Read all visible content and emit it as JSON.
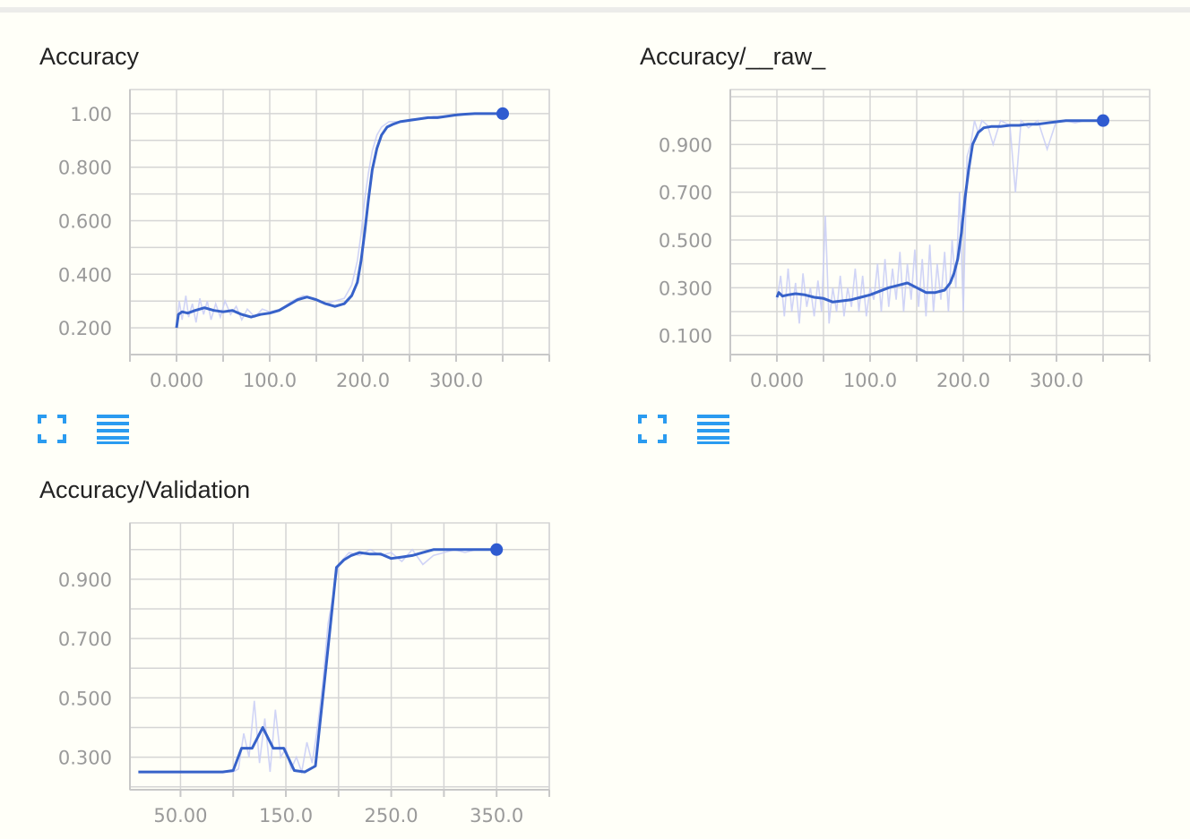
{
  "colors": {
    "background": "#fffff8",
    "series_smoothed": "#3762c9",
    "series_raw": "#c8cdf6",
    "icon_blue": "#2a9bf0",
    "grid": "#d5d5d5",
    "tick_text": "#9a9a9a"
  },
  "icons": {
    "expand": "expand-icon",
    "data_table": "data-table-icon"
  },
  "chart_data": [
    {
      "type": "line",
      "title": "Accuracy",
      "xlabel": "",
      "ylabel": "",
      "xlim": [
        -50,
        400
      ],
      "ylim": [
        0.1,
        1.09
      ],
      "x_ticks": [
        0,
        100,
        200,
        300
      ],
      "x_tick_labels": [
        "0.000",
        "100.0",
        "200.0",
        "300.0"
      ],
      "y_ticks": [
        1.0,
        0.8,
        0.6,
        0.4,
        0.2
      ],
      "y_tick_labels": [
        "1.00",
        "0.800",
        "0.600",
        "0.400",
        "0.200"
      ],
      "grid": true,
      "series": [
        {
          "style": "raw",
          "x": [
            0,
            3,
            6,
            10,
            13,
            17,
            21,
            25,
            29,
            33,
            37,
            42,
            47,
            52,
            58,
            64,
            70,
            76,
            84,
            92,
            100,
            112,
            124,
            136,
            148,
            160,
            170,
            180,
            188,
            194,
            198,
            202,
            206,
            210,
            215,
            220,
            228,
            240,
            252,
            264,
            276,
            290,
            305,
            320,
            335,
            350
          ],
          "y": [
            0.2,
            0.3,
            0.23,
            0.32,
            0.24,
            0.29,
            0.22,
            0.31,
            0.25,
            0.3,
            0.23,
            0.29,
            0.24,
            0.3,
            0.25,
            0.28,
            0.23,
            0.27,
            0.24,
            0.27,
            0.26,
            0.27,
            0.3,
            0.32,
            0.31,
            0.29,
            0.3,
            0.31,
            0.36,
            0.45,
            0.55,
            0.68,
            0.78,
            0.86,
            0.92,
            0.95,
            0.97,
            0.97,
            0.98,
            0.98,
            0.99,
            0.99,
            1.0,
            1.0,
            1.0,
            1.0
          ]
        },
        {
          "style": "smoothed",
          "x": [
            0,
            2,
            6,
            12,
            20,
            30,
            40,
            50,
            60,
            70,
            80,
            90,
            100,
            110,
            120,
            130,
            140,
            150,
            160,
            170,
            180,
            188,
            194,
            198,
            202,
            206,
            210,
            215,
            220,
            226,
            232,
            240,
            250,
            260,
            270,
            280,
            290,
            300,
            310,
            320,
            330,
            340,
            350
          ],
          "y": [
            0.2,
            0.25,
            0.26,
            0.255,
            0.265,
            0.275,
            0.265,
            0.26,
            0.265,
            0.25,
            0.24,
            0.25,
            0.255,
            0.265,
            0.285,
            0.305,
            0.315,
            0.305,
            0.29,
            0.28,
            0.29,
            0.32,
            0.37,
            0.45,
            0.56,
            0.68,
            0.79,
            0.87,
            0.92,
            0.95,
            0.96,
            0.97,
            0.975,
            0.98,
            0.985,
            0.985,
            0.99,
            0.995,
            0.998,
            1.0,
            1.0,
            1.0,
            1.0
          ]
        }
      ]
    },
    {
      "type": "line",
      "title": "Accuracy/__raw_",
      "xlabel": "",
      "ylabel": "",
      "xlim": [
        -50,
        400
      ],
      "ylim": [
        0.02,
        1.13
      ],
      "x_ticks": [
        0,
        100,
        200,
        300
      ],
      "x_tick_labels": [
        "0.000",
        "100.0",
        "200.0",
        "300.0"
      ],
      "y_ticks": [
        0.9,
        0.7,
        0.5,
        0.3,
        0.1
      ],
      "y_tick_labels": [
        "0.900",
        "0.700",
        "0.500",
        "0.300",
        "0.100"
      ],
      "grid": true,
      "series": [
        {
          "style": "raw",
          "x": [
            0,
            4,
            8,
            12,
            16,
            20,
            24,
            28,
            32,
            36,
            40,
            44,
            48,
            52,
            56,
            60,
            64,
            68,
            72,
            76,
            80,
            84,
            88,
            92,
            96,
            100,
            104,
            108,
            112,
            116,
            120,
            124,
            128,
            132,
            136,
            140,
            144,
            148,
            152,
            156,
            160,
            164,
            168,
            172,
            176,
            180,
            184,
            188,
            192,
            196,
            200,
            204,
            208,
            212,
            216,
            220,
            226,
            232,
            240,
            250,
            256,
            262,
            270,
            280,
            290,
            300,
            310,
            320,
            330,
            340,
            350
          ],
          "y": [
            0.25,
            0.35,
            0.18,
            0.38,
            0.2,
            0.32,
            0.15,
            0.36,
            0.22,
            0.3,
            0.18,
            0.33,
            0.2,
            0.6,
            0.15,
            0.3,
            0.2,
            0.35,
            0.18,
            0.3,
            0.22,
            0.38,
            0.2,
            0.35,
            0.18,
            0.3,
            0.25,
            0.4,
            0.2,
            0.42,
            0.22,
            0.38,
            0.25,
            0.45,
            0.2,
            0.4,
            0.25,
            0.46,
            0.22,
            0.42,
            0.18,
            0.48,
            0.2,
            0.4,
            0.25,
            0.45,
            0.2,
            0.5,
            0.3,
            0.7,
            0.2,
            0.85,
            0.9,
            1.0,
            0.95,
            1.0,
            0.98,
            0.9,
            1.0,
            0.98,
            0.7,
            1.0,
            0.97,
            1.0,
            0.88,
            1.0,
            1.0,
            0.99,
            1.0,
            1.0,
            1.0
          ]
        },
        {
          "style": "smoothed",
          "x": [
            0,
            2,
            6,
            12,
            20,
            30,
            40,
            50,
            60,
            70,
            80,
            90,
            100,
            110,
            120,
            130,
            140,
            150,
            160,
            170,
            180,
            186,
            190,
            194,
            198,
            202,
            206,
            210,
            216,
            222,
            230,
            240,
            250,
            260,
            270,
            280,
            290,
            300,
            310,
            320,
            330,
            340,
            350
          ],
          "y": [
            0.26,
            0.28,
            0.265,
            0.27,
            0.275,
            0.27,
            0.26,
            0.255,
            0.24,
            0.245,
            0.25,
            0.26,
            0.27,
            0.285,
            0.3,
            0.31,
            0.32,
            0.3,
            0.28,
            0.28,
            0.29,
            0.32,
            0.36,
            0.42,
            0.53,
            0.68,
            0.8,
            0.9,
            0.95,
            0.97,
            0.975,
            0.975,
            0.98,
            0.98,
            0.985,
            0.985,
            0.99,
            0.995,
            1.0,
            1.0,
            1.0,
            1.0,
            1.0
          ]
        }
      ]
    },
    {
      "type": "line",
      "title": "Accuracy/Validation",
      "xlabel": "",
      "ylabel": "",
      "xlim": [
        2,
        400
      ],
      "ylim": [
        0.19,
        1.09
      ],
      "x_ticks": [
        50,
        150,
        250,
        350
      ],
      "x_tick_labels": [
        "50.00",
        "150.0",
        "250.0",
        "350.0"
      ],
      "y_ticks": [
        0.9,
        0.7,
        0.5,
        0.3
      ],
      "y_tick_labels": [
        "0.900",
        "0.700",
        "0.500",
        "0.300"
      ],
      "grid": true,
      "series": [
        {
          "style": "raw",
          "x": [
            10,
            30,
            50,
            70,
            90,
            100,
            105,
            110,
            115,
            120,
            125,
            130,
            135,
            140,
            145,
            150,
            155,
            160,
            165,
            170,
            175,
            180,
            185,
            190,
            195,
            200,
            205,
            210,
            220,
            230,
            240,
            250,
            260,
            270,
            280,
            290,
            300,
            310,
            320,
            330,
            340,
            350
          ],
          "y": [
            0.25,
            0.25,
            0.25,
            0.25,
            0.25,
            0.25,
            0.26,
            0.38,
            0.3,
            0.49,
            0.28,
            0.43,
            0.25,
            0.46,
            0.3,
            0.33,
            0.26,
            0.3,
            0.25,
            0.35,
            0.28,
            0.4,
            0.55,
            0.75,
            0.85,
            0.95,
            0.97,
            0.99,
            0.98,
            1.0,
            0.98,
            0.99,
            0.96,
            1.0,
            0.95,
            0.98,
            0.99,
            1.0,
            0.99,
            1.0,
            1.0,
            1.0
          ]
        },
        {
          "style": "smoothed",
          "x": [
            10,
            30,
            50,
            70,
            90,
            100,
            108,
            118,
            128,
            138,
            148,
            158,
            168,
            178,
            188,
            198,
            205,
            212,
            220,
            230,
            240,
            250,
            260,
            270,
            280,
            290,
            300,
            310,
            320,
            330,
            340,
            350
          ],
          "y": [
            0.25,
            0.25,
            0.25,
            0.25,
            0.25,
            0.255,
            0.33,
            0.33,
            0.4,
            0.33,
            0.33,
            0.255,
            0.25,
            0.27,
            0.6,
            0.94,
            0.965,
            0.98,
            0.99,
            0.985,
            0.985,
            0.97,
            0.975,
            0.98,
            0.99,
            1.0,
            1.0,
            1.0,
            1.0,
            1.0,
            1.0,
            1.0
          ]
        }
      ]
    }
  ]
}
